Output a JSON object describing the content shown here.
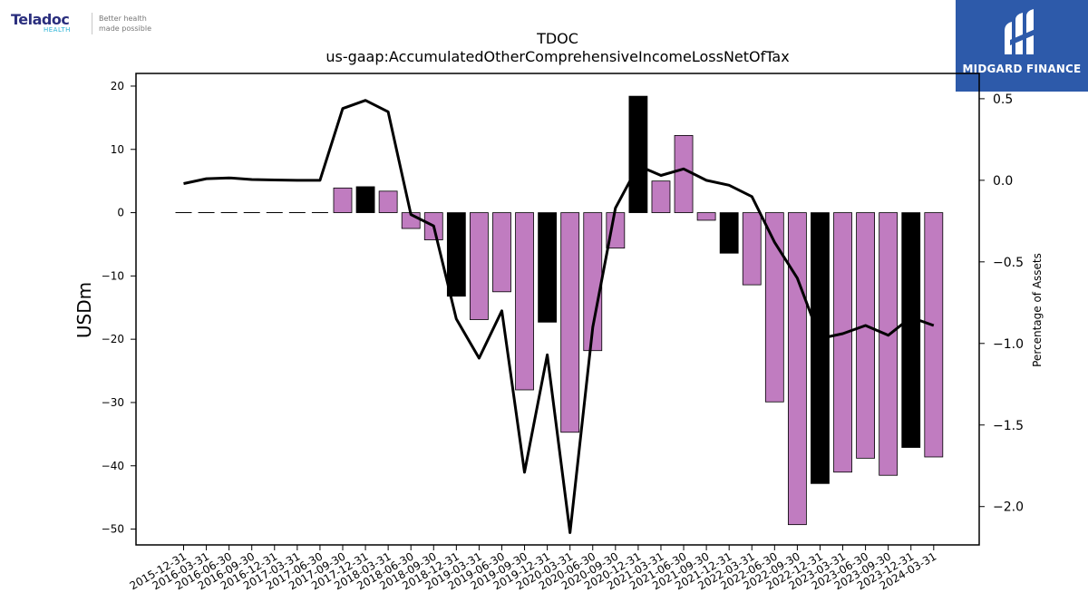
{
  "logos": {
    "left": {
      "brand": "Teladoc",
      "sub": "HEALTH",
      "tagline_1": "Better health",
      "tagline_2": "made possible"
    },
    "right": {
      "text": "MIDGARD FINANCE",
      "color": "#2d5aaa"
    }
  },
  "chart_data": {
    "type": "bar",
    "title": "TDOC",
    "subtitle": "us-gaap:AccumulatedOtherComprehensiveIncomeLossNetOfTax",
    "ylabel": "USDm",
    "y2label": "Percentage of Assets",
    "ylim": [
      -52.5,
      22
    ],
    "y2lim": [
      -2.235,
      0.655
    ],
    "yticks": [
      20,
      10,
      0,
      -10,
      -20,
      -30,
      -40,
      -50
    ],
    "y2ticks": [
      0.5,
      0.0,
      -0.5,
      -1.0,
      -1.5,
      -2.0
    ],
    "y2tick_labels": [
      "0.5",
      "0.0",
      "−0.5",
      "−1.0",
      "−1.5",
      "−2.0"
    ],
    "categories": [
      "2015-12-31",
      "2016-03-31",
      "2016-06-30",
      "2016-09-30",
      "2016-12-31",
      "2017-03-31",
      "2017-06-30",
      "2017-09-30",
      "2017-12-31",
      "2018-03-31",
      "2018-06-30",
      "2018-09-30",
      "2018-12-31",
      "2019-03-31",
      "2019-06-30",
      "2019-09-30",
      "2019-12-31",
      "2020-03-31",
      "2020-06-30",
      "2020-09-30",
      "2020-12-31",
      "2021-03-31",
      "2021-06-30",
      "2021-09-30",
      "2021-12-31",
      "2022-03-31",
      "2022-06-30",
      "2022-09-30",
      "2022-12-31",
      "2023-03-31",
      "2023-06-30",
      "2023-09-30",
      "2023-12-31",
      "2024-03-31"
    ],
    "series": [
      {
        "type": "bar",
        "axis": "left",
        "values": [
          0,
          0,
          0,
          0,
          0,
          0,
          0,
          3.9,
          4.1,
          3.4,
          -2.5,
          -4.3,
          -13.2,
          -16.9,
          -12.5,
          -28.0,
          -17.3,
          -34.7,
          -21.8,
          -5.6,
          18.4,
          5.0,
          12.2,
          -1.2,
          -6.4,
          -11.4,
          -29.9,
          -49.3,
          -42.8,
          -41.0,
          -38.8,
          -41.5,
          -37.1,
          -38.6
        ],
        "colors": [
          "#c07cc0",
          "#c07cc0",
          "#c07cc0",
          "#c07cc0",
          "#c07cc0",
          "#c07cc0",
          "#c07cc0",
          "#c07cc0",
          "#000000",
          "#c07cc0",
          "#c07cc0",
          "#c07cc0",
          "#000000",
          "#c07cc0",
          "#c07cc0",
          "#c07cc0",
          "#000000",
          "#c07cc0",
          "#c07cc0",
          "#c07cc0",
          "#000000",
          "#c07cc0",
          "#c07cc0",
          "#c07cc0",
          "#000000",
          "#c07cc0",
          "#c07cc0",
          "#c07cc0",
          "#000000",
          "#c07cc0",
          "#c07cc0",
          "#c07cc0",
          "#000000",
          "#c07cc0"
        ]
      },
      {
        "type": "line",
        "axis": "right",
        "color": "#000000",
        "values": [
          -0.02,
          0.01,
          0.015,
          0.005,
          0.002,
          0.0,
          0.0,
          0.44,
          0.49,
          0.42,
          -0.21,
          -0.28,
          -0.85,
          -1.09,
          -0.8,
          -1.79,
          -1.07,
          -2.16,
          -0.9,
          -0.17,
          0.09,
          0.03,
          0.07,
          0.0,
          -0.03,
          -0.1,
          -0.38,
          -0.6,
          -0.97,
          -0.94,
          -0.89,
          -0.95,
          -0.84,
          -0.89
        ]
      }
    ],
    "grid": false,
    "legend": "none"
  }
}
